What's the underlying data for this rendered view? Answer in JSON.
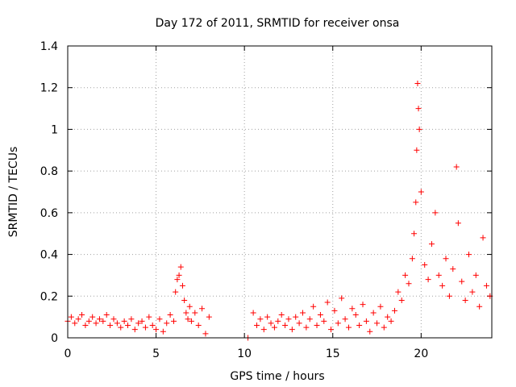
{
  "chart_data": {
    "type": "scatter",
    "title": "Day 172 of 2011, SRMTID for receiver onsa",
    "xlabel": "GPS time / hours",
    "ylabel": "SRMTID / TECUs",
    "xlim": [
      0,
      24
    ],
    "ylim": [
      0,
      1.4
    ],
    "xticks": [
      0,
      5,
      10,
      15,
      20
    ],
    "xtick_labels": [
      "0",
      "5",
      "10",
      "15",
      "20"
    ],
    "yticks": [
      0,
      0.2,
      0.4,
      0.6,
      0.8,
      1.0,
      1.2,
      1.4
    ],
    "ytick_labels": [
      "0",
      "0.2",
      "0.4",
      "0.6",
      "0.8",
      "1",
      "1.2",
      "1.4"
    ],
    "grid": true,
    "marker": "+",
    "color": "#ff0000",
    "series": [
      {
        "name": "SRMTID",
        "x": [
          0.0,
          0.2,
          0.4,
          0.6,
          0.8,
          1.0,
          1.2,
          1.4,
          1.6,
          1.8,
          2.0,
          2.2,
          2.4,
          2.6,
          2.8,
          3.0,
          3.2,
          3.4,
          3.6,
          3.8,
          4.0,
          4.2,
          4.4,
          4.6,
          4.8,
          5.0,
          5.2,
          5.4,
          5.6,
          5.8,
          6.0,
          6.1,
          6.2,
          6.3,
          6.4,
          6.5,
          6.6,
          6.7,
          6.8,
          6.9,
          7.0,
          7.2,
          7.4,
          7.6,
          7.8,
          8.0,
          10.2,
          10.5,
          10.7,
          10.9,
          11.1,
          11.3,
          11.5,
          11.7,
          11.9,
          12.1,
          12.3,
          12.5,
          12.7,
          12.9,
          13.1,
          13.3,
          13.5,
          13.7,
          13.9,
          14.1,
          14.3,
          14.5,
          14.7,
          14.9,
          15.1,
          15.3,
          15.5,
          15.7,
          15.9,
          16.1,
          16.3,
          16.5,
          16.7,
          16.9,
          17.1,
          17.3,
          17.5,
          17.7,
          17.9,
          18.1,
          18.3,
          18.5,
          18.7,
          18.9,
          19.1,
          19.3,
          19.5,
          19.6,
          19.7,
          19.75,
          19.8,
          19.85,
          19.9,
          20.0,
          20.2,
          20.4,
          20.6,
          20.8,
          21.0,
          21.2,
          21.4,
          21.6,
          21.8,
          22.0,
          22.1,
          22.3,
          22.5,
          22.7,
          22.9,
          23.1,
          23.3,
          23.5,
          23.7,
          23.9
        ],
        "y": [
          0.08,
          0.1,
          0.07,
          0.09,
          0.11,
          0.06,
          0.08,
          0.1,
          0.07,
          0.09,
          0.08,
          0.11,
          0.06,
          0.09,
          0.07,
          0.05,
          0.08,
          0.06,
          0.09,
          0.04,
          0.07,
          0.08,
          0.05,
          0.1,
          0.06,
          0.04,
          0.09,
          0.03,
          0.07,
          0.11,
          0.08,
          0.22,
          0.28,
          0.3,
          0.34,
          0.25,
          0.18,
          0.12,
          0.09,
          0.15,
          0.08,
          0.12,
          0.06,
          0.14,
          0.02,
          0.1,
          0.0,
          0.12,
          0.06,
          0.09,
          0.04,
          0.1,
          0.07,
          0.05,
          0.08,
          0.11,
          0.06,
          0.09,
          0.04,
          0.1,
          0.07,
          0.12,
          0.05,
          0.09,
          0.15,
          0.06,
          0.11,
          0.08,
          0.17,
          0.04,
          0.13,
          0.07,
          0.19,
          0.09,
          0.05,
          0.14,
          0.11,
          0.06,
          0.16,
          0.08,
          0.03,
          0.12,
          0.07,
          0.15,
          0.05,
          0.1,
          0.08,
          0.13,
          0.22,
          0.18,
          0.3,
          0.26,
          0.38,
          0.5,
          0.65,
          0.9,
          1.22,
          1.1,
          1.0,
          0.7,
          0.35,
          0.28,
          0.45,
          0.6,
          0.3,
          0.25,
          0.38,
          0.2,
          0.33,
          0.82,
          0.55,
          0.27,
          0.18,
          0.4,
          0.22,
          0.3,
          0.15,
          0.48,
          0.25,
          0.2
        ]
      }
    ]
  }
}
